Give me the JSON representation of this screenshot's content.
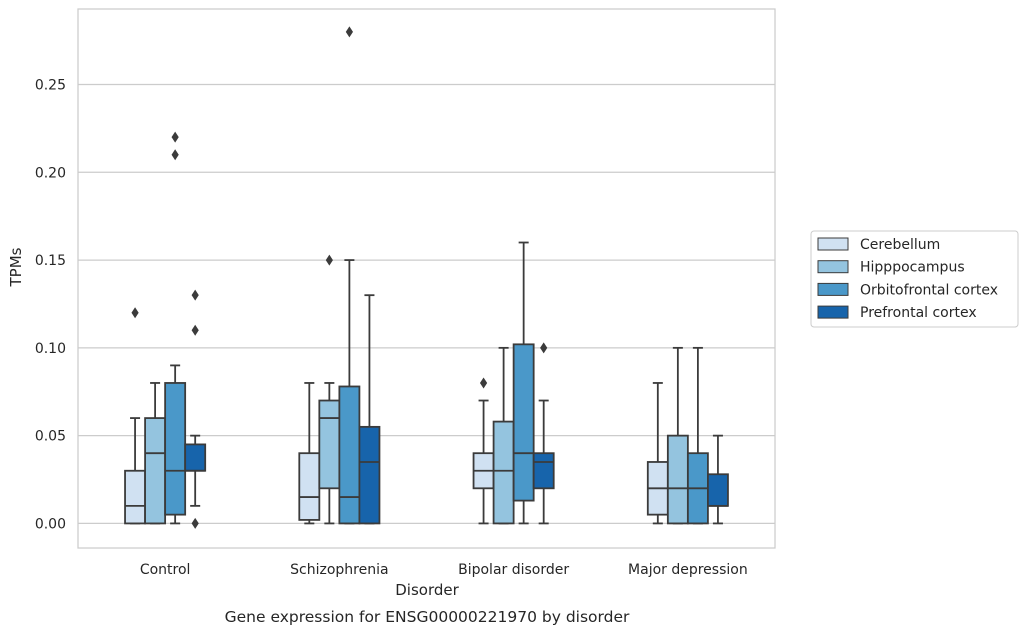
{
  "chart_data": {
    "type": "box",
    "caption": "Gene expression for ENSG00000221970 by disorder",
    "xlabel": "Disorder",
    "ylabel": "TPMs",
    "ylim": [
      -0.014,
      0.293
    ],
    "yticks": [
      "0.00",
      "0.05",
      "0.10",
      "0.15",
      "0.20",
      "0.25"
    ],
    "ytick_values": [
      0,
      0.05,
      0.1,
      0.15,
      0.2,
      0.25
    ],
    "grid": "horizontal",
    "legend_position": "right",
    "categories": [
      "Control",
      "Schizophrenia",
      "Bipolar disorder",
      "Major depression"
    ],
    "series": [
      {
        "name": "Cerebellum",
        "color": "#d0e1f2",
        "boxes": [
          {
            "whislo": 0.0,
            "q1": 0.0,
            "med": 0.01,
            "q3": 0.03,
            "whishi": 0.06,
            "fliers": [
              0.12
            ]
          },
          {
            "whislo": 0.0,
            "q1": 0.002,
            "med": 0.015,
            "q3": 0.04,
            "whishi": 0.08,
            "fliers": []
          },
          {
            "whislo": 0.0,
            "q1": 0.02,
            "med": 0.03,
            "q3": 0.04,
            "whishi": 0.07,
            "fliers": [
              0.08
            ]
          },
          {
            "whislo": 0.0,
            "q1": 0.005,
            "med": 0.02,
            "q3": 0.035,
            "whishi": 0.08,
            "fliers": []
          }
        ]
      },
      {
        "name": "Hipppocampus",
        "color": "#94c4df",
        "boxes": [
          {
            "whislo": 0.0,
            "q1": 0.0,
            "med": 0.04,
            "q3": 0.06,
            "whishi": 0.08,
            "fliers": []
          },
          {
            "whislo": 0.0,
            "q1": 0.02,
            "med": 0.06,
            "q3": 0.07,
            "whishi": 0.08,
            "fliers": [
              0.15
            ]
          },
          {
            "whislo": 0.0,
            "q1": 0.0,
            "med": 0.03,
            "q3": 0.058,
            "whishi": 0.1,
            "fliers": []
          },
          {
            "whislo": 0.0,
            "q1": 0.0,
            "med": 0.02,
            "q3": 0.05,
            "whishi": 0.1,
            "fliers": []
          }
        ]
      },
      {
        "name": "Orbitofrontal cortex",
        "color": "#4a98c9",
        "boxes": [
          {
            "whislo": 0.0,
            "q1": 0.005,
            "med": 0.03,
            "q3": 0.08,
            "whishi": 0.09,
            "fliers": [
              0.21,
              0.22
            ]
          },
          {
            "whislo": 0.0,
            "q1": 0.0,
            "med": 0.015,
            "q3": 0.078,
            "whishi": 0.15,
            "fliers": [
              0.28
            ]
          },
          {
            "whislo": 0.0,
            "q1": 0.013,
            "med": 0.04,
            "q3": 0.102,
            "whishi": 0.16,
            "fliers": []
          },
          {
            "whislo": 0.0,
            "q1": 0.0,
            "med": 0.02,
            "q3": 0.04,
            "whishi": 0.1,
            "fliers": []
          }
        ]
      },
      {
        "name": "Prefrontal cortex",
        "color": "#1764ab",
        "boxes": [
          {
            "whislo": 0.01,
            "q1": 0.03,
            "med": 0.03,
            "q3": 0.045,
            "whishi": 0.05,
            "fliers": [
              0.0,
              0.11,
              0.13
            ]
          },
          {
            "whislo": 0.0,
            "q1": 0.0,
            "med": 0.035,
            "q3": 0.055,
            "whishi": 0.13,
            "fliers": []
          },
          {
            "whislo": 0.0,
            "q1": 0.02,
            "med": 0.035,
            "q3": 0.04,
            "whishi": 0.07,
            "fliers": [
              0.1
            ]
          },
          {
            "whislo": 0.0,
            "q1": 0.01,
            "med": 0.01,
            "q3": 0.028,
            "whishi": 0.05,
            "fliers": []
          }
        ]
      }
    ]
  }
}
